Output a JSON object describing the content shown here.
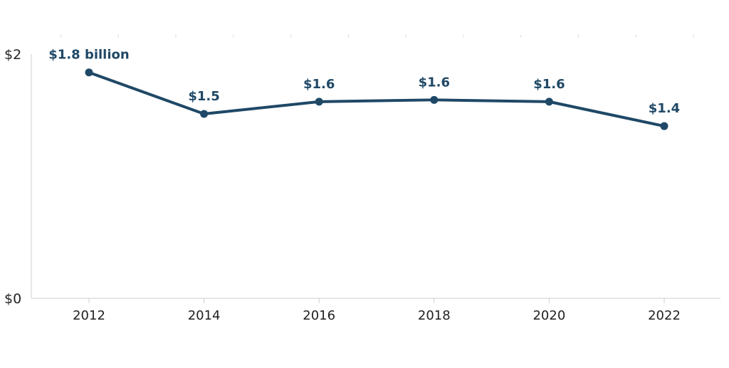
{
  "chart_data": {
    "type": "line",
    "title": "",
    "xlabel": "",
    "ylabel": "",
    "x": [
      "2012",
      "2014",
      "2016",
      "2018",
      "2020",
      "2022"
    ],
    "y_ticks": [
      "$0",
      "$2"
    ],
    "ylim": [
      0,
      2
    ],
    "series": [
      {
        "values": [
          1.85,
          1.51,
          1.61,
          1.625,
          1.61,
          1.41
        ],
        "labels": [
          "$1.8 billion",
          "$1.5",
          "$1.6",
          "$1.6",
          "$1.6",
          "$1.4"
        ],
        "color": "#1f4866"
      }
    ],
    "grid": false,
    "legend": "none"
  }
}
